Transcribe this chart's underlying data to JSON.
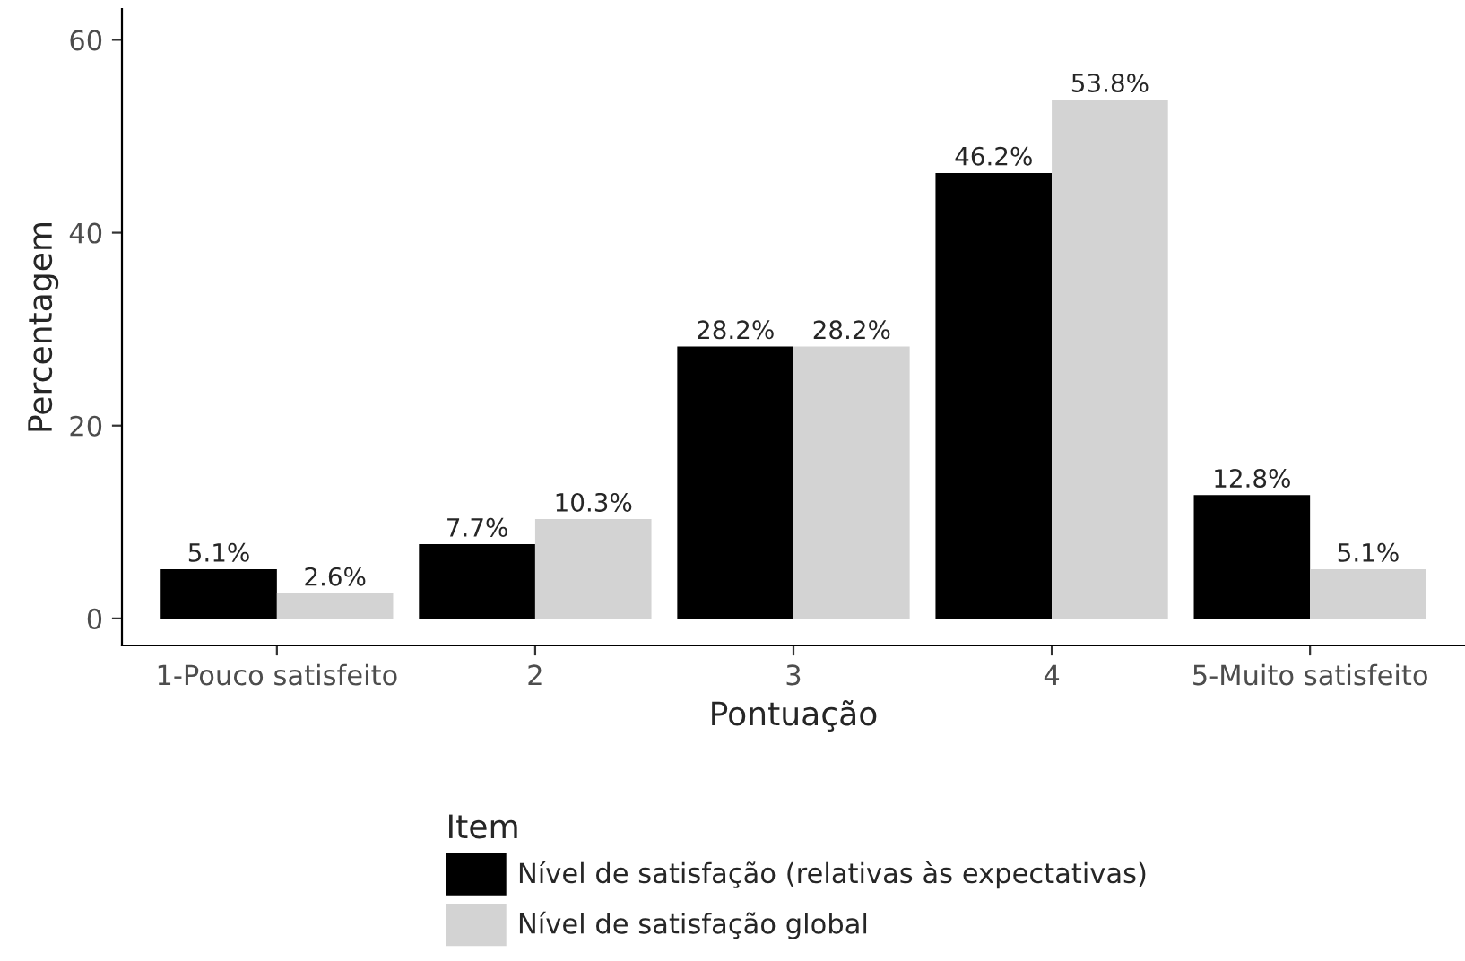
{
  "chart_data": {
    "type": "bar",
    "xlabel": "Pontuação",
    "ylabel": "Percentagem",
    "legend_title": "Item",
    "categories": [
      "1-Pouco satisfeito",
      "2",
      "3",
      "4",
      "5-Muito satisfeito"
    ],
    "series": [
      {
        "name": "Nível de satisfação (relativas às expectativas)",
        "color": "#000000",
        "values": [
          5.1,
          7.7,
          28.2,
          46.2,
          12.8
        ],
        "value_labels": [
          "5.1%",
          "7.7%",
          "28.2%",
          "46.2%",
          "12.8%"
        ]
      },
      {
        "name": "Nível de satisfação global",
        "color": "#d3d3d3",
        "values": [
          2.6,
          10.3,
          28.2,
          53.8,
          5.1
        ],
        "value_labels": [
          "2.6%",
          "10.3%",
          "28.2%",
          "53.8%",
          "5.1%"
        ]
      }
    ],
    "ylim": [
      -2.8,
      63.2
    ],
    "yticks": [
      0,
      20,
      40,
      60
    ],
    "grid": false,
    "legend": "bottom"
  }
}
